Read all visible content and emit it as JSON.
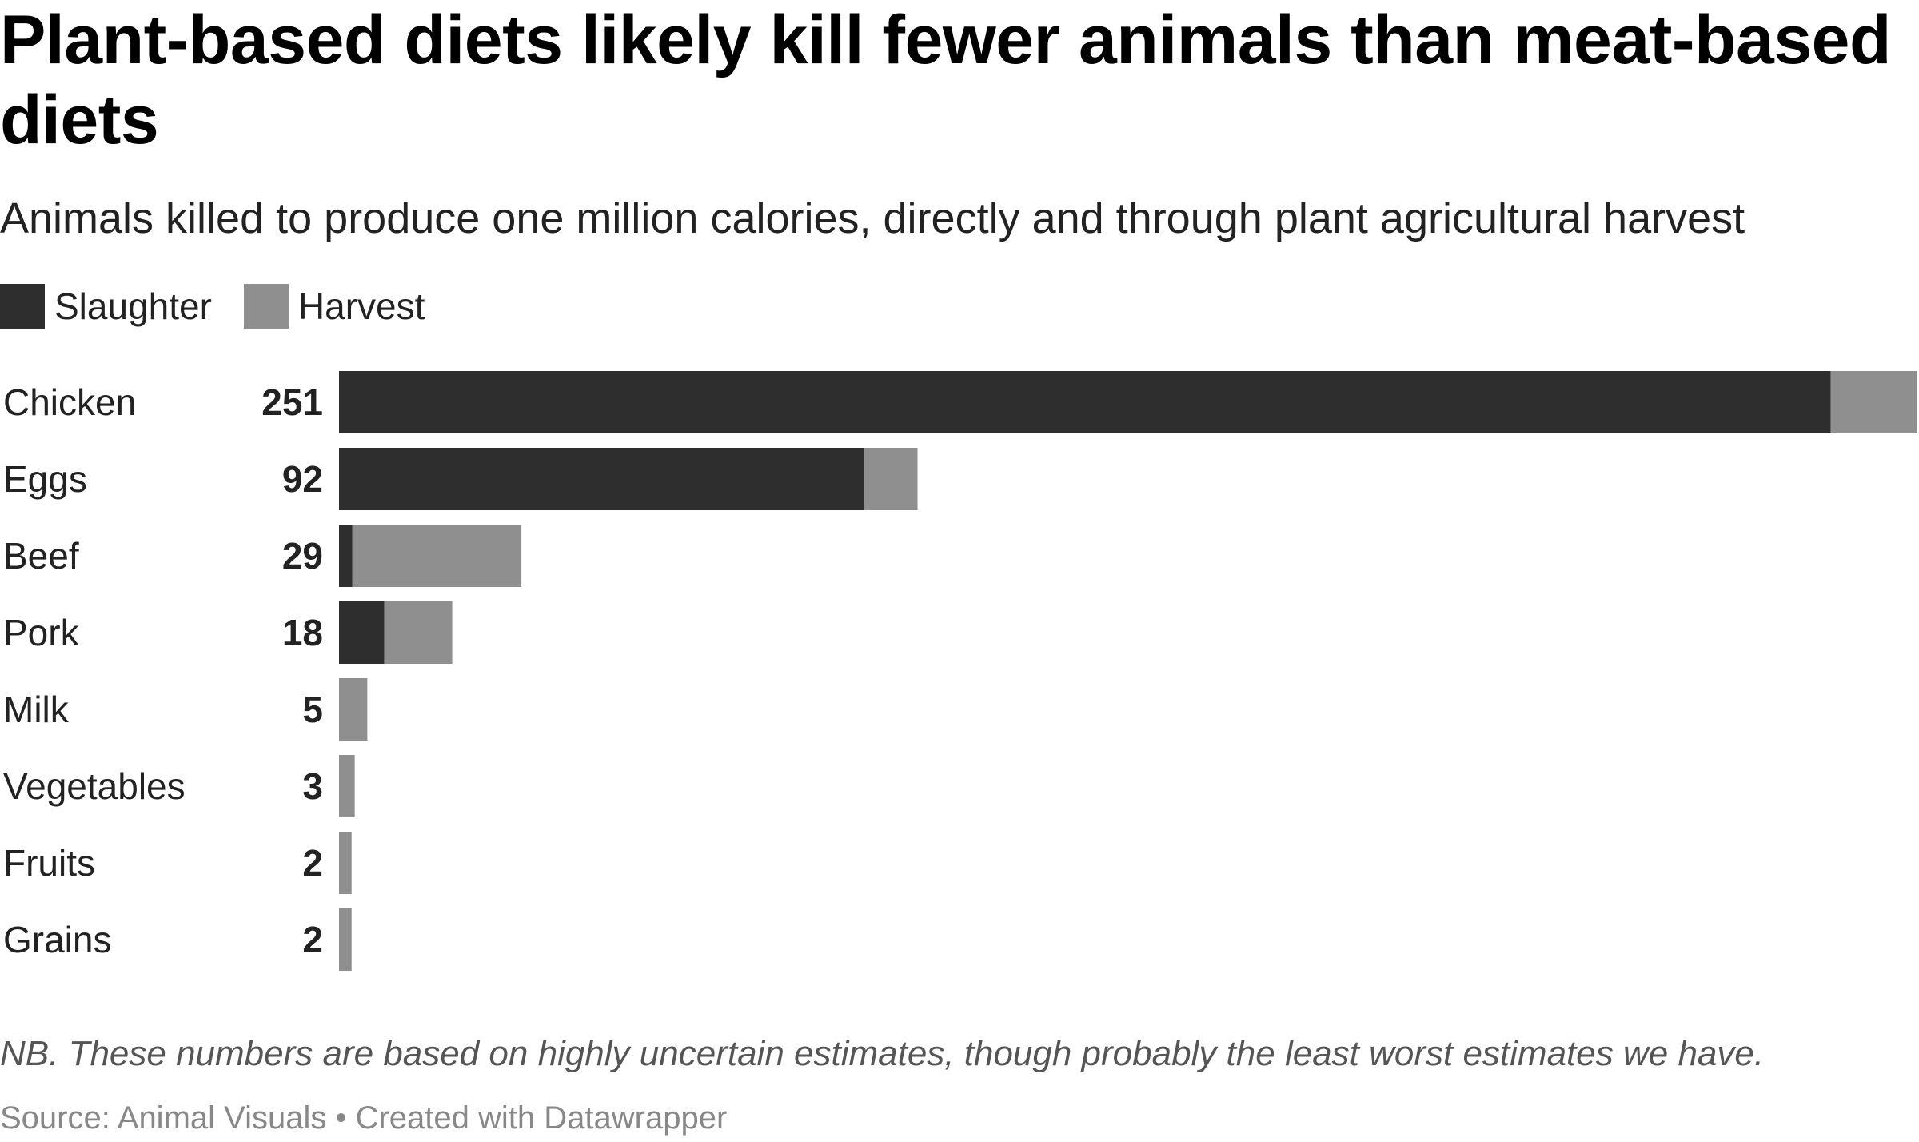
{
  "title": "Plant-based diets likely kill fewer animals than meat-based diets",
  "subtitle": "Animals killed to produce one million calories, directly and through plant agricultural harvest",
  "legend": {
    "slaughter_label": "Slaughter",
    "harvest_label": "Harvest"
  },
  "colors": {
    "slaughter": "#2e2e2e",
    "harvest": "#8f8f8f"
  },
  "chart_data": {
    "type": "bar",
    "orientation": "horizontal",
    "stacked": true,
    "title": "Plant-based diets likely kill fewer animals than meat-based diets",
    "subtitle": "Animals killed to produce one million calories, directly and through plant agricultural harvest",
    "categories": [
      "Chicken",
      "Eggs",
      "Beef",
      "Pork",
      "Milk",
      "Vegetables",
      "Fruits",
      "Grains"
    ],
    "totals_labels": [
      "251",
      "92",
      "29",
      "18",
      "5",
      "3",
      "2",
      "2"
    ],
    "series": [
      {
        "name": "Slaughter",
        "values": [
          237.2,
          83.5,
          2.1,
          7.2,
          0,
          0,
          0,
          0
        ]
      },
      {
        "name": "Harvest",
        "values": [
          13.8,
          8.5,
          26.9,
          10.8,
          4.5,
          2.5,
          2.0,
          2.0
        ]
      }
    ],
    "xlim": [
      0,
      251
    ],
    "xlabel": "",
    "ylabel": "",
    "grid": false,
    "legend_position": "top-left"
  },
  "note": "NB. These numbers are based on highly uncertain estimates, though probably the least worst estimates we have.",
  "source": "Source: Animal Visuals • Created with Datawrapper"
}
